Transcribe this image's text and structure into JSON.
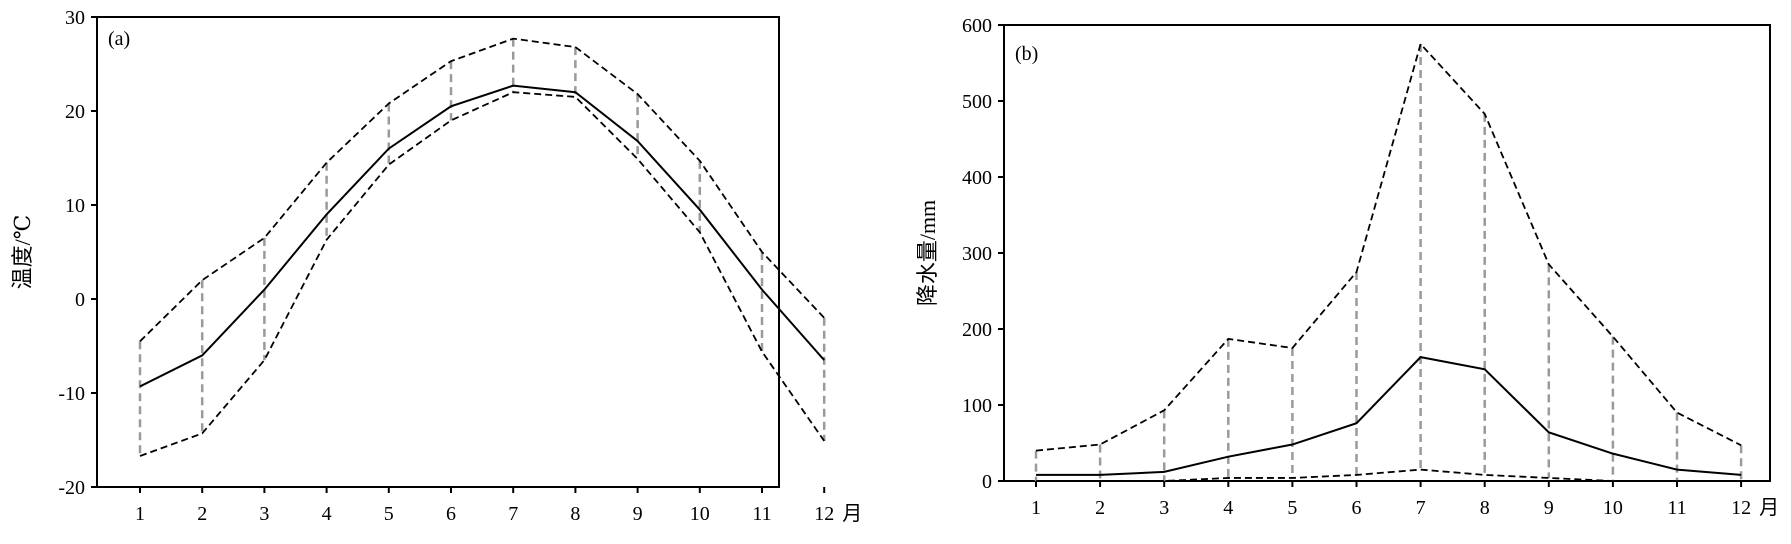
{
  "chart_data": [
    {
      "type": "line",
      "panel_label": "(a)",
      "ylabel": "温度/℃",
      "x_unit": "月",
      "categories": [
        "1",
        "2",
        "3",
        "4",
        "5",
        "6",
        "7",
        "8",
        "9",
        "10",
        "11",
        "12"
      ],
      "ylim": [
        -20,
        30
      ],
      "yticks": [
        -20,
        -10,
        0,
        10,
        20,
        30
      ],
      "grid": false,
      "range_bars": true,
      "series": [
        {
          "style": "solid",
          "values": [
            -9.3,
            -6.0,
            1.0,
            9.0,
            16.0,
            20.5,
            22.7,
            22.0,
            16.8,
            9.5,
            1.0,
            -6.5
          ]
        },
        {
          "style": "dashed",
          "values": [
            -4.5,
            2.0,
            6.5,
            14.5,
            20.8,
            25.3,
            27.7,
            26.8,
            21.8,
            14.7,
            5.0,
            -2.0
          ]
        },
        {
          "style": "dashed",
          "values": [
            -16.7,
            -14.3,
            -6.5,
            6.3,
            14.3,
            19.0,
            22.0,
            21.5,
            14.9,
            7.1,
            -5.6,
            -15.1
          ]
        }
      ]
    },
    {
      "type": "line",
      "panel_label": "(b)",
      "ylabel": "降水量/mm",
      "x_unit": "月",
      "categories": [
        "1",
        "2",
        "3",
        "4",
        "5",
        "6",
        "7",
        "8",
        "9",
        "10",
        "11",
        "12"
      ],
      "ylim": [
        0,
        600
      ],
      "yticks": [
        0,
        100,
        200,
        300,
        400,
        500,
        600
      ],
      "grid": false,
      "range_bars": true,
      "series": [
        {
          "style": "solid",
          "values": [
            8,
            8,
            12,
            32,
            48,
            76,
            163,
            147,
            64,
            36,
            15,
            8
          ]
        },
        {
          "style": "dashed",
          "values": [
            40,
            48,
            93,
            187,
            175,
            275,
            575,
            483,
            285,
            190,
            90,
            47
          ]
        },
        {
          "style": "dashed",
          "values": [
            0,
            0,
            0,
            4,
            4,
            8,
            15,
            8,
            4,
            0,
            0,
            0
          ]
        }
      ]
    }
  ]
}
